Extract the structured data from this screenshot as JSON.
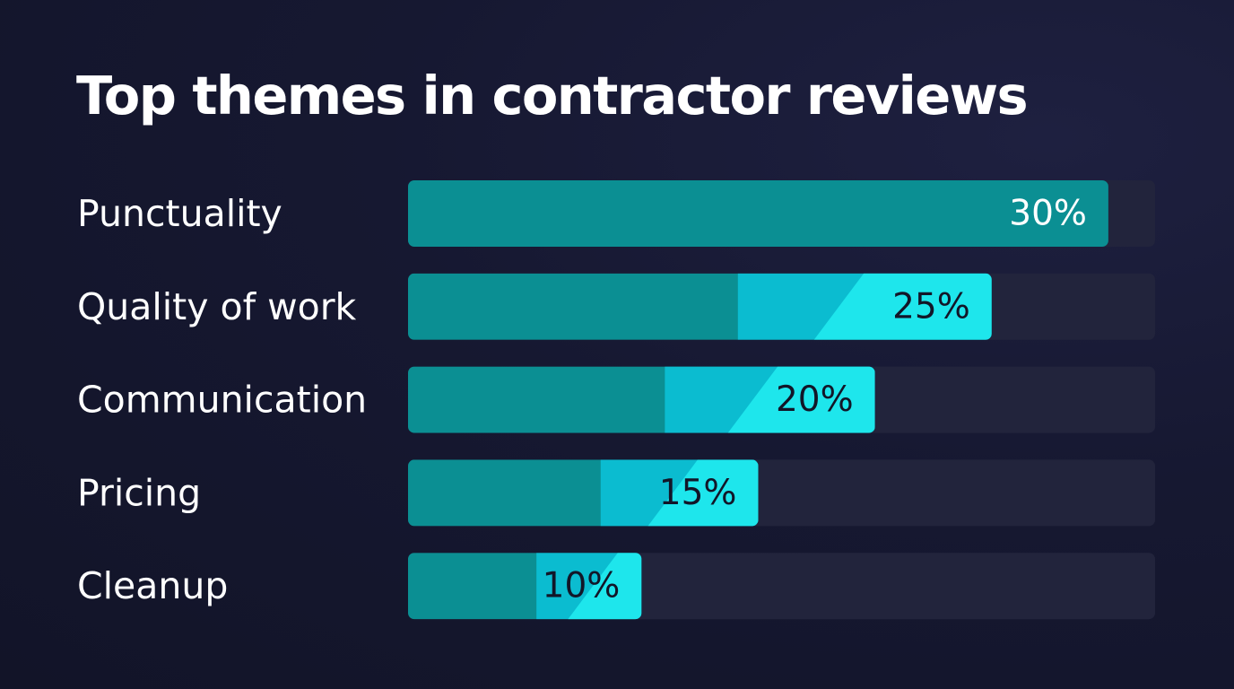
{
  "chart_data": {
    "type": "bar",
    "orientation": "horizontal",
    "title": "Top themes in contractor reviews",
    "categories": [
      "Punctuality",
      "Quality of work",
      "Communication",
      "Pricing",
      "Cleanup"
    ],
    "values": [
      30,
      25,
      20,
      15,
      10
    ],
    "value_labels": [
      "30%",
      "25%",
      "20%",
      "15%",
      "10%"
    ],
    "unit": "%",
    "xlim": [
      0,
      32
    ],
    "grid": false,
    "legend": "none"
  },
  "colors": {
    "background": "#161831",
    "track": "#22243c",
    "bar_base": "#0b8f93",
    "bar_mid": "#0bbcd0",
    "bar_accent": "#1ee6ec",
    "label_on_dark": "#ffffff",
    "label_on_light": "#121628"
  }
}
